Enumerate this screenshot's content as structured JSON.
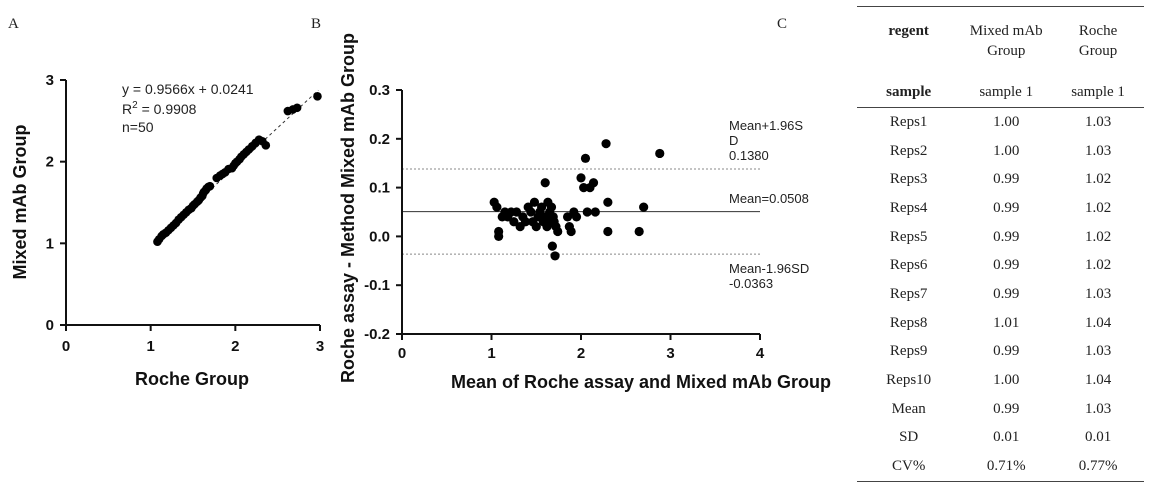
{
  "panels": {
    "a": {
      "letter": "A"
    },
    "b": {
      "letter": "B"
    },
    "c": {
      "letter": "C"
    }
  },
  "chart_data": [
    {
      "type": "scatter",
      "panel": "A",
      "xlabel": "Roche Group",
      "ylabel": "Mixed mAb Group",
      "xlim": [
        0,
        3
      ],
      "ylim": [
        0,
        3
      ],
      "xticks": [
        "0",
        "1",
        "2",
        "3"
      ],
      "yticks": [
        "0",
        "1",
        "2",
        "3"
      ],
      "annotation": {
        "equation": "y = 0.9566x + 0.0241",
        "r2_prefix": "R",
        "r2_sup": "2",
        "r2_value": " = 0.9908",
        "n": "n=50"
      },
      "regression": {
        "slope": 0.9566,
        "intercept": 0.0241,
        "x_range": [
          1.05,
          2.98
        ]
      },
      "points": [
        [
          1.08,
          1.02
        ],
        [
          1.1,
          1.05
        ],
        [
          1.13,
          1.09
        ],
        [
          1.15,
          1.11
        ],
        [
          1.18,
          1.13
        ],
        [
          1.21,
          1.16
        ],
        [
          1.24,
          1.19
        ],
        [
          1.27,
          1.22
        ],
        [
          1.3,
          1.25
        ],
        [
          1.33,
          1.29
        ],
        [
          1.36,
          1.32
        ],
        [
          1.39,
          1.35
        ],
        [
          1.42,
          1.38
        ],
        [
          1.45,
          1.41
        ],
        [
          1.48,
          1.43
        ],
        [
          1.5,
          1.46
        ],
        [
          1.52,
          1.48
        ],
        [
          1.55,
          1.51
        ],
        [
          1.57,
          1.53
        ],
        [
          1.59,
          1.56
        ],
        [
          1.61,
          1.58
        ],
        [
          1.62,
          1.61
        ],
        [
          1.63,
          1.63
        ],
        [
          1.65,
          1.65
        ],
        [
          1.66,
          1.67
        ],
        [
          1.68,
          1.69
        ],
        [
          1.7,
          1.7
        ],
        [
          1.78,
          1.8
        ],
        [
          1.82,
          1.83
        ],
        [
          1.85,
          1.85
        ],
        [
          1.88,
          1.87
        ],
        [
          1.92,
          1.91
        ],
        [
          1.96,
          1.92
        ],
        [
          1.98,
          1.95
        ],
        [
          2.0,
          1.98
        ],
        [
          2.02,
          2.0
        ],
        [
          2.05,
          2.03
        ],
        [
          2.07,
          2.06
        ],
        [
          2.1,
          2.09
        ],
        [
          2.13,
          2.12
        ],
        [
          2.16,
          2.15
        ],
        [
          2.2,
          2.19
        ],
        [
          2.24,
          2.23
        ],
        [
          2.28,
          2.27
        ],
        [
          2.32,
          2.25
        ],
        [
          2.36,
          2.2
        ],
        [
          2.62,
          2.62
        ],
        [
          2.68,
          2.64
        ],
        [
          2.73,
          2.66
        ],
        [
          2.97,
          2.8
        ]
      ]
    },
    {
      "type": "scatter",
      "panel": "B",
      "xlabel": "Mean of Roche assay and Mixed mAb Group",
      "ylabel": "Roche assay - Method Mixed mAb Group",
      "xlim": [
        0,
        4
      ],
      "ylim": [
        -0.2,
        0.3
      ],
      "xticks": [
        "0",
        "1",
        "2",
        "3",
        "4"
      ],
      "yticks": [
        "0.3",
        "0.2",
        "0.1",
        "0.0",
        "-0.1",
        "-0.2"
      ],
      "reference_lines": [
        {
          "label_1": "Mean+1.96S",
          "label_2": "D",
          "label_3": "0.1380",
          "value": 0.138,
          "style": "dotted"
        },
        {
          "label_1": "Mean=0.0508",
          "value": 0.0508,
          "style": "solid"
        },
        {
          "label_1": "Mean-1.96SD",
          "label_2": "-0.0363",
          "value": -0.0363,
          "style": "dotted"
        }
      ],
      "points": [
        [
          1.03,
          0.07
        ],
        [
          1.06,
          0.06
        ],
        [
          1.08,
          0.01
        ],
        [
          1.08,
          0.0
        ],
        [
          1.12,
          0.04
        ],
        [
          1.15,
          0.05
        ],
        [
          1.18,
          0.04
        ],
        [
          1.22,
          0.05
        ],
        [
          1.25,
          0.03
        ],
        [
          1.28,
          0.05
        ],
        [
          1.32,
          0.02
        ],
        [
          1.35,
          0.04
        ],
        [
          1.38,
          0.03
        ],
        [
          1.41,
          0.06
        ],
        [
          1.44,
          0.05
        ],
        [
          1.46,
          0.03
        ],
        [
          1.48,
          0.07
        ],
        [
          1.5,
          0.02
        ],
        [
          1.52,
          0.04
        ],
        [
          1.54,
          0.05
        ],
        [
          1.56,
          0.06
        ],
        [
          1.58,
          0.03
        ],
        [
          1.6,
          0.11
        ],
        [
          1.6,
          0.04
        ],
        [
          1.62,
          0.02
        ],
        [
          1.63,
          0.07
        ],
        [
          1.65,
          0.05
        ],
        [
          1.66,
          0.03
        ],
        [
          1.67,
          0.06
        ],
        [
          1.68,
          -0.02
        ],
        [
          1.69,
          0.04
        ],
        [
          1.7,
          0.03
        ],
        [
          1.71,
          -0.04
        ],
        [
          1.72,
          0.02
        ],
        [
          1.74,
          0.01
        ],
        [
          1.85,
          0.04
        ],
        [
          1.87,
          0.02
        ],
        [
          1.89,
          0.01
        ],
        [
          1.92,
          0.05
        ],
        [
          1.95,
          0.04
        ],
        [
          2.0,
          0.12
        ],
        [
          2.03,
          0.1
        ],
        [
          2.05,
          0.16
        ],
        [
          2.07,
          0.05
        ],
        [
          2.1,
          0.1
        ],
        [
          2.14,
          0.11
        ],
        [
          2.16,
          0.05
        ],
        [
          2.28,
          0.19
        ],
        [
          2.3,
          0.07
        ],
        [
          2.3,
          0.01
        ],
        [
          2.65,
          0.01
        ],
        [
          2.7,
          0.06
        ],
        [
          2.88,
          0.17
        ]
      ]
    },
    {
      "type": "table",
      "panel": "C",
      "columns": [
        {
          "line1": "regent",
          "line2": ""
        },
        {
          "line1": "Mixed mAb",
          "line2": "Group"
        },
        {
          "line1": "Roche",
          "line2": "Group"
        }
      ],
      "subheader": [
        "sample",
        "sample 1",
        "sample 1"
      ],
      "rows": [
        [
          "Reps1",
          "1.00",
          "1.03"
        ],
        [
          "Reps2",
          "1.00",
          "1.03"
        ],
        [
          "Reps3",
          "0.99",
          "1.02"
        ],
        [
          "Reps4",
          "0.99",
          "1.02"
        ],
        [
          "Reps5",
          "0.99",
          "1.02"
        ],
        [
          "Reps6",
          "0.99",
          "1.02"
        ],
        [
          "Reps7",
          "0.99",
          "1.03"
        ],
        [
          "Reps8",
          "1.01",
          "1.04"
        ],
        [
          "Reps9",
          "0.99",
          "1.03"
        ],
        [
          "Reps10",
          "1.00",
          "1.04"
        ],
        [
          "Mean",
          "0.99",
          "1.03"
        ],
        [
          "SD",
          "0.01",
          "0.01"
        ],
        [
          "CV%",
          "0.71%",
          "0.77%"
        ]
      ]
    }
  ]
}
